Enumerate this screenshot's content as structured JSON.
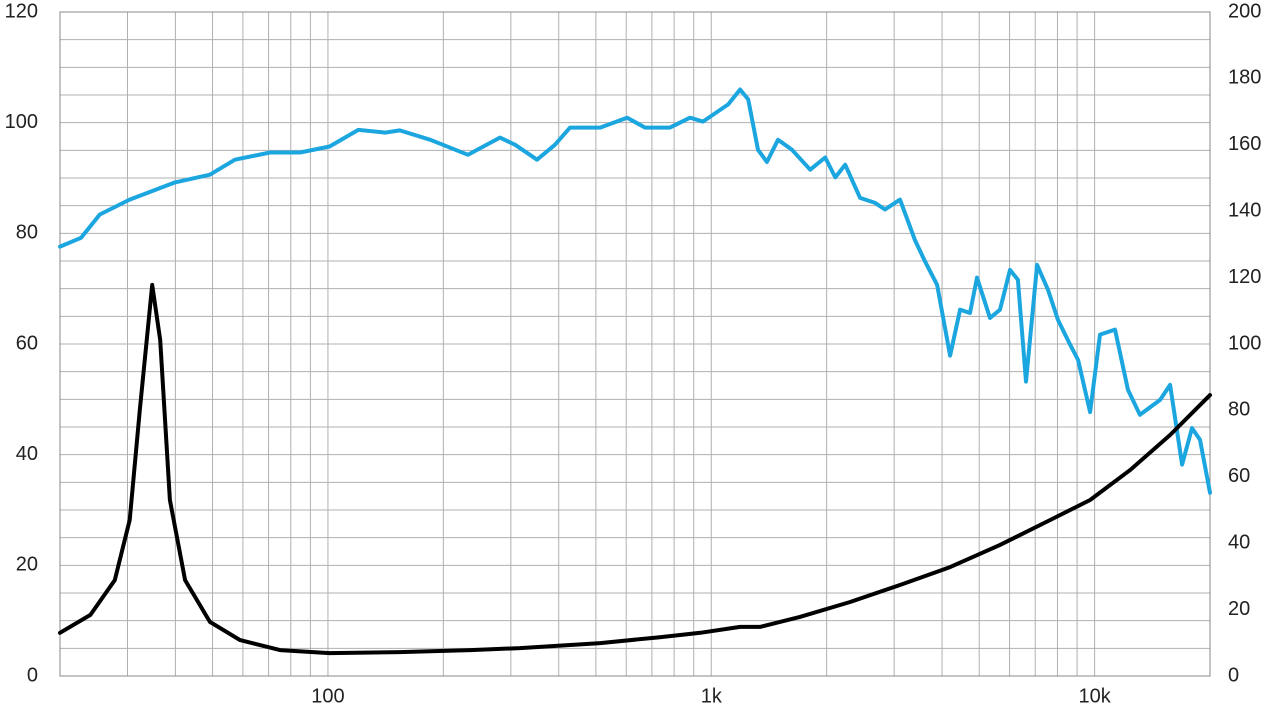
{
  "chart_data": {
    "type": "line",
    "xscale": "log",
    "grid": true,
    "xlim": [
      20,
      20000
    ],
    "xticks": [
      100,
      {
        "value": 1000,
        "label": "1k"
      },
      {
        "value": 10000,
        "label": "10k"
      }
    ],
    "xgrid": [
      20,
      30,
      40,
      50,
      60,
      70,
      80,
      90,
      100,
      200,
      300,
      400,
      500,
      600,
      700,
      800,
      900,
      1000,
      2000,
      3000,
      4000,
      5000,
      6000,
      7000,
      8000,
      9000,
      10000,
      20000
    ],
    "ylim": [
      0,
      120
    ],
    "yticks": [
      0,
      20,
      40,
      60,
      80,
      100,
      120
    ],
    "ygrid": [
      0,
      5,
      10,
      15,
      20,
      25,
      30,
      35,
      40,
      45,
      50,
      55,
      60,
      65,
      70,
      75,
      80,
      85,
      90,
      95,
      100,
      105,
      110,
      115,
      120
    ],
    "y2lim": [
      0,
      200
    ],
    "y2ticks": [
      0,
      20,
      40,
      60,
      80,
      100,
      120,
      140,
      160,
      180,
      200
    ],
    "series": [
      {
        "color": "#1ba6df",
        "x": [
          20,
          22.7,
          25.4,
          30.4,
          39.9,
          49.2,
          57.2,
          70.6,
          84.6,
          101,
          120,
          141,
          154,
          185,
          232,
          281,
          308,
          351,
          391,
          428,
          513,
          603,
          672,
          780,
          880,
          951,
          1107,
          1189,
          1248,
          1324,
          1397,
          1493,
          1624,
          1812,
          1983,
          2106,
          2235,
          2445,
          2675,
          2840,
          3107,
          3398,
          3612,
          3882,
          4199,
          4459,
          4732,
          4935,
          5335,
          5665,
          6015,
          6309,
          6623,
          7080,
          7557,
          8022,
          8630,
          9055,
          9731,
          10330,
          11300,
          12220,
          13130,
          14820,
          15740,
          16910,
          17950,
          18830,
          20000
        ],
        "values": [
          77.6,
          79.2,
          83.4,
          86.1,
          89.2,
          90.6,
          93.3,
          94.6,
          94.6,
          95.7,
          98.7,
          98.2,
          98.6,
          96.9,
          94.2,
          97.3,
          96.0,
          93.3,
          96.0,
          99.1,
          99.1,
          100.9,
          99.1,
          99.1,
          100.9,
          100.2,
          103.3,
          106.0,
          104.2,
          95.1,
          92.9,
          96.9,
          95.1,
          91.5,
          93.7,
          90.1,
          92.4,
          86.4,
          85.5,
          84.3,
          86.1,
          78.8,
          74.9,
          70.7,
          57.9,
          66.2,
          65.6,
          72.0,
          64.7,
          66.2,
          73.4,
          71.6,
          53.2,
          74.3,
          69.8,
          64.4,
          59.9,
          57.1,
          47.7,
          61.7,
          62.6,
          51.7,
          47.2,
          49.9,
          52.6,
          38.2,
          44.8,
          42.7,
          33.1
        ]
      },
      {
        "color": "#000000",
        "axis": "y2",
        "x": [
          20,
          24,
          27.8,
          30.4,
          32.3,
          34.8,
          36.5,
          38.7,
          42.4,
          49.2,
          59,
          75,
          101,
          154,
          235,
          317,
          513,
          734,
          936,
          1189,
          1340,
          1703,
          2302,
          3107,
          4199,
          5665,
          7660,
          9731,
          12360,
          15740,
          20000
        ],
        "values": [
          13.0,
          18.4,
          28.9,
          47.0,
          80.1,
          117.8,
          101.2,
          53.0,
          28.9,
          16.3,
          10.8,
          7.8,
          6.9,
          7.2,
          7.8,
          8.4,
          9.9,
          11.7,
          13.0,
          14.8,
          14.8,
          17.8,
          22.3,
          27.4,
          32.8,
          39.5,
          47.0,
          53.0,
          62.0,
          72.6,
          84.6
        ]
      }
    ]
  }
}
